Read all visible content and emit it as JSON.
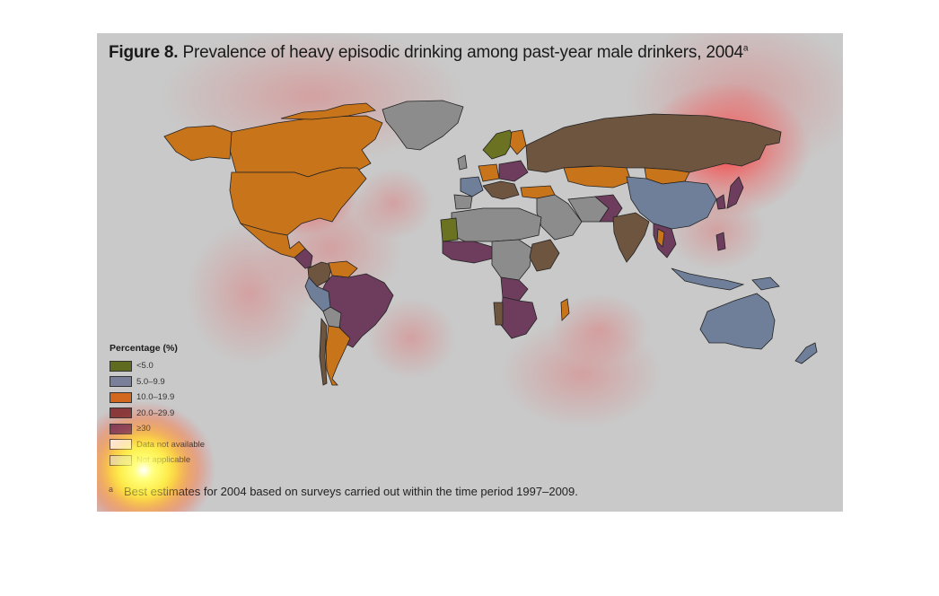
{
  "title": {
    "prefix": "Figure 8.",
    "text": "Prevalence of heavy episodic drinking among past-year male drinkers, 2004",
    "superscript": "a"
  },
  "legend": {
    "title": "Percentage (%)",
    "items": [
      {
        "label": "<5.0",
        "color": "#5f6b1f"
      },
      {
        "label": "5.0–9.9",
        "color": "#7a7f9a"
      },
      {
        "label": "10.0–19.9",
        "color": "#d2681e"
      },
      {
        "label": "20.0–29.9",
        "color": "#8a3a3a"
      },
      {
        "label": "≥30",
        "color": "#7a3a5a"
      },
      {
        "label": "Data not available",
        "color": "#ffffff"
      },
      {
        "label": "Not applicable",
        "color": "#dcdcdc"
      }
    ]
  },
  "footnote": {
    "marker": "a",
    "text": "Best estimates for 2004 based on surveys carried out within the time period 1997–2009."
  },
  "colors": {
    "background": "#c9c9c9",
    "orange": "#c8741a",
    "brown": "#6e5540",
    "purple": "#6e3d5e",
    "blue_grey": "#6f7f99",
    "grey": "#8c8c8c",
    "olive": "#6b7322",
    "heat_red": "#ff2a2a",
    "heat_yellow": "#ffff66"
  }
}
